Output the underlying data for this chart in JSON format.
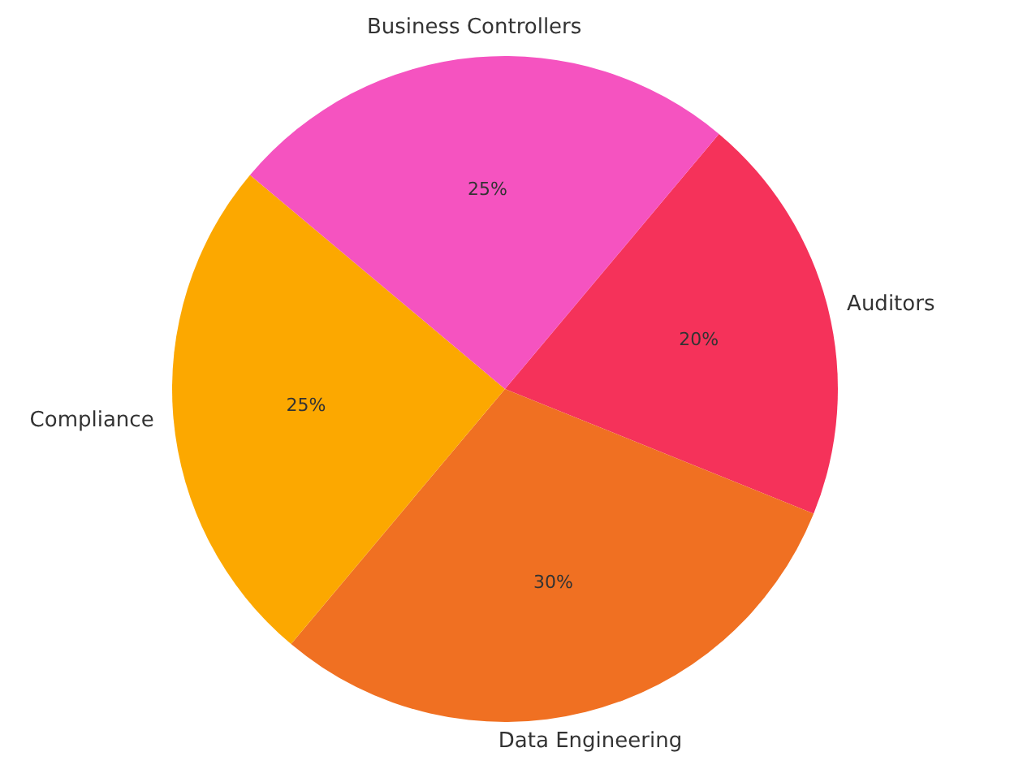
{
  "chart_data": {
    "type": "pie",
    "categories": [
      "Auditors",
      "Data Engineering",
      "Compliance",
      "Business Controllers"
    ],
    "values": [
      20,
      30,
      25,
      25
    ],
    "value_labels": [
      "20%",
      "30%",
      "25%",
      "25%"
    ],
    "colors": [
      "#f5325a",
      "#f07022",
      "#fca800",
      "#f553c0"
    ]
  }
}
